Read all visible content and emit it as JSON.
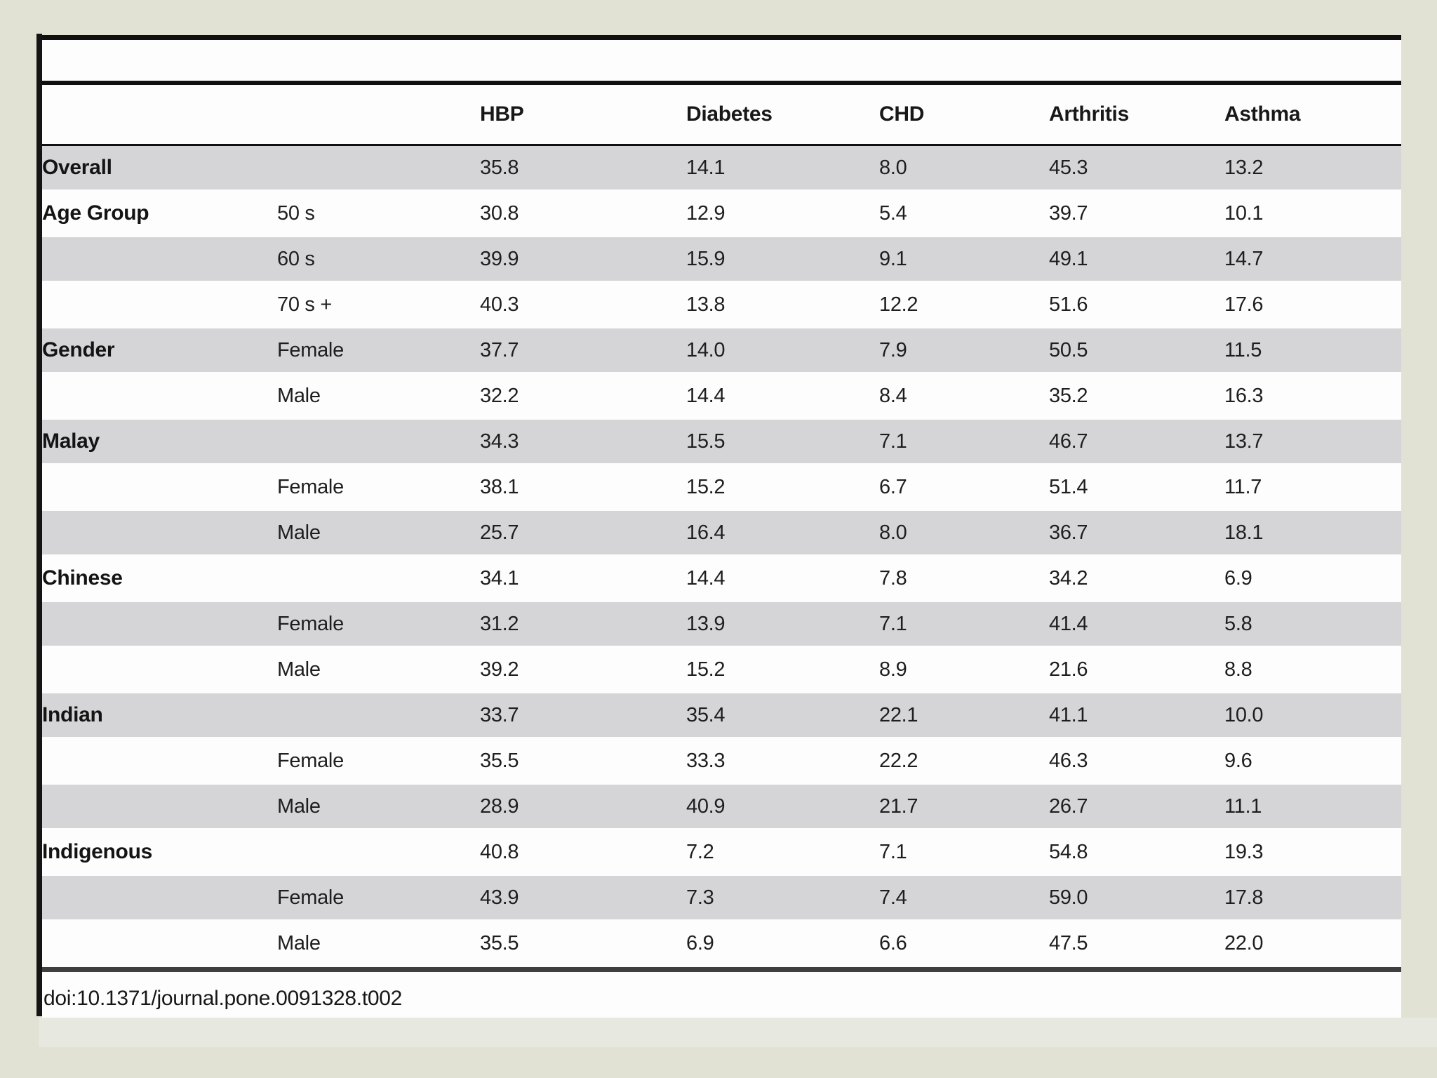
{
  "page": {
    "background_color": "#e1e2d4",
    "panel_color": "#fdfdfd",
    "shaded_row_color": "#d5d5d7",
    "rule_color": "#101010",
    "left_bar_color": "#141414"
  },
  "table": {
    "columns": [
      "",
      "",
      "HBP",
      "Diabetes",
      "CHD",
      "Arthritis",
      "Asthma"
    ],
    "rows": [
      {
        "group": "Overall",
        "sub": "",
        "values": [
          "35.8",
          "14.1",
          "8.0",
          "45.3",
          "13.2"
        ],
        "shaded": true
      },
      {
        "group": "Age Group",
        "sub": "50 s",
        "values": [
          "30.8",
          "12.9",
          "5.4",
          "39.7",
          "10.1"
        ],
        "shaded": false
      },
      {
        "group": "",
        "sub": "60 s",
        "values": [
          "39.9",
          "15.9",
          "9.1",
          "49.1",
          "14.7"
        ],
        "shaded": true
      },
      {
        "group": "",
        "sub": "70 s +",
        "values": [
          "40.3",
          "13.8",
          "12.2",
          "51.6",
          "17.6"
        ],
        "shaded": false
      },
      {
        "group": "Gender",
        "sub": "Female",
        "values": [
          "37.7",
          "14.0",
          "7.9",
          "50.5",
          "11.5"
        ],
        "shaded": true
      },
      {
        "group": "",
        "sub": "Male",
        "values": [
          "32.2",
          "14.4",
          "8.4",
          "35.2",
          "16.3"
        ],
        "shaded": false
      },
      {
        "group": "Malay",
        "sub": "",
        "values": [
          "34.3",
          "15.5",
          "7.1",
          "46.7",
          "13.7"
        ],
        "shaded": true
      },
      {
        "group": "",
        "sub": "Female",
        "values": [
          "38.1",
          "15.2",
          "6.7",
          "51.4",
          "11.7"
        ],
        "shaded": false
      },
      {
        "group": "",
        "sub": "Male",
        "values": [
          "25.7",
          "16.4",
          "8.0",
          "36.7",
          "18.1"
        ],
        "shaded": true
      },
      {
        "group": "Chinese",
        "sub": "",
        "values": [
          "34.1",
          "14.4",
          "7.8",
          "34.2",
          "6.9"
        ],
        "shaded": false
      },
      {
        "group": "",
        "sub": "Female",
        "values": [
          "31.2",
          "13.9",
          "7.1",
          "41.4",
          "5.8"
        ],
        "shaded": true
      },
      {
        "group": "",
        "sub": "Male",
        "values": [
          "39.2",
          "15.2",
          "8.9",
          "21.6",
          "8.8"
        ],
        "shaded": false
      },
      {
        "group": "Indian",
        "sub": "",
        "values": [
          "33.7",
          "35.4",
          "22.1",
          "41.1",
          "10.0"
        ],
        "shaded": true
      },
      {
        "group": "",
        "sub": "Female",
        "values": [
          "35.5",
          "33.3",
          "22.2",
          "46.3",
          "9.6"
        ],
        "shaded": false
      },
      {
        "group": "",
        "sub": "Male",
        "values": [
          "28.9",
          "40.9",
          "21.7",
          "26.7",
          "11.1"
        ],
        "shaded": true
      },
      {
        "group": "Indigenous",
        "sub": "",
        "values": [
          "40.8",
          "7.2",
          "7.1",
          "54.8",
          "19.3"
        ],
        "shaded": false
      },
      {
        "group": "",
        "sub": "Female",
        "values": [
          "43.9",
          "7.3",
          "7.4",
          "59.0",
          "17.8"
        ],
        "shaded": true
      },
      {
        "group": "",
        "sub": "Male",
        "values": [
          "35.5",
          "6.9",
          "6.6",
          "47.5",
          "22.0"
        ],
        "shaded": false
      }
    ]
  },
  "footer": {
    "doi": "doi:10.1371/journal.pone.0091328.t002"
  }
}
